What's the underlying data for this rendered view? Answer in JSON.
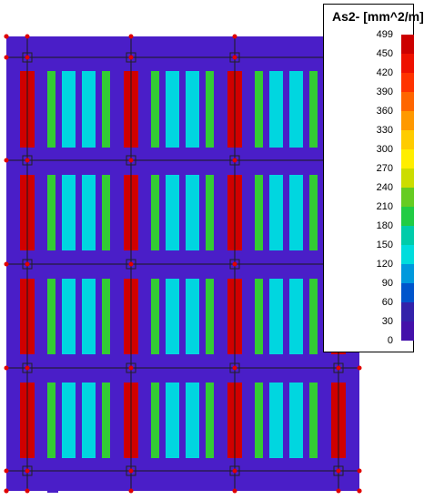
{
  "legend": {
    "title": "As2- [mm^2/m]",
    "ticks": [
      "499",
      "450",
      "420",
      "390",
      "360",
      "330",
      "300",
      "270",
      "240",
      "210",
      "180",
      "150",
      "120",
      "90",
      "60",
      "30",
      "0"
    ],
    "colors": [
      "#cc0000",
      "#ee1100",
      "#ff3300",
      "#ff6600",
      "#ff9900",
      "#ffcc00",
      "#ffee00",
      "#ccdd00",
      "#66cc22",
      "#22cc44",
      "#00ccaa",
      "#00dddd",
      "#0099dd",
      "#0055cc",
      "#3322aa",
      "#4411aa"
    ]
  },
  "colors": {
    "slab": "#4a1ec8",
    "max": "#d00000",
    "mid_green": "#33cc33",
    "mid_cyan": "#00d6e0",
    "grid_line": "#1a1a1a",
    "node": "#e00000"
  }
}
